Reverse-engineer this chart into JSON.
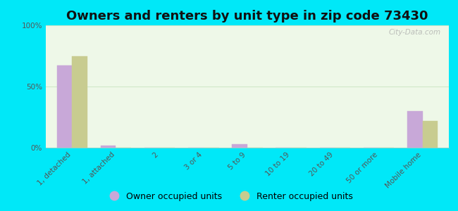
{
  "title": "Owners and renters by unit type in zip code 73430",
  "categories": [
    "1, detached",
    "1, attached",
    "2",
    "3 or 4",
    "5 to 9",
    "10 to 19",
    "20 to 49",
    "50 or more",
    "Mobile home"
  ],
  "owner_values": [
    67,
    2,
    0,
    0,
    3,
    0,
    0,
    0,
    30
  ],
  "renter_values": [
    75,
    0,
    0,
    0,
    0,
    0,
    0,
    0,
    22
  ],
  "owner_color": "#c8a8d8",
  "renter_color": "#c8cc90",
  "bg_color": "#00e8f8",
  "plot_bg_color": "#eef8e8",
  "grid_color": "#d0e8c8",
  "bar_width": 0.35,
  "ylim": [
    0,
    100
  ],
  "yticks": [
    0,
    50,
    100
  ],
  "ytick_labels": [
    "0%",
    "50%",
    "100%"
  ],
  "title_fontsize": 13,
  "legend_fontsize": 9,
  "tick_fontsize": 7.5,
  "watermark": "City-Data.com"
}
